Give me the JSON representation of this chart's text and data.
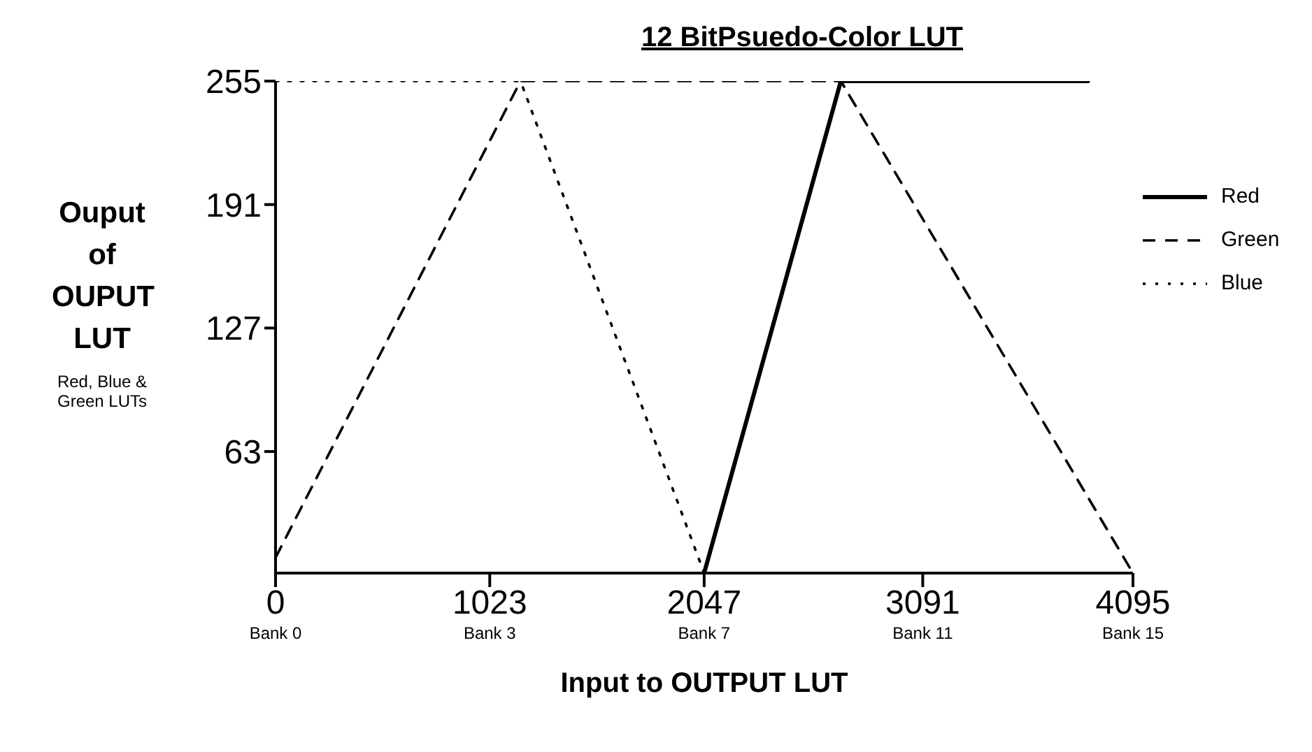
{
  "chart_data": {
    "type": "line",
    "title": "12 BitPsuedo-Color LUT",
    "xlabel": "Input to OUTPUT LUT",
    "ylabel": "Ouput of OUPUT LUT",
    "annotations": [
      "Red, Blue & Green LUTs",
      "Bank 0",
      "Bank 3",
      "Bank 7",
      "Bank 11",
      "Bank 15"
    ],
    "xlim": [
      0,
      4095
    ],
    "xticks": [
      0,
      1023,
      2047,
      3091,
      4095
    ],
    "ylim": [
      0,
      255
    ],
    "yticks": [
      63,
      127,
      191,
      255
    ],
    "grid": false,
    "legend": "right",
    "marker": "none",
    "series": [
      {
        "name": "Red",
        "color": "#000000",
        "line_style": "solid",
        "x": [
          2047,
          2700,
          3880
        ],
        "values": [
          0,
          255,
          255
        ]
      },
      {
        "name": "Green",
        "color": "#000000",
        "line_style": "dashed",
        "x": [
          0,
          1170,
          2700,
          4095
        ],
        "values": [
          8,
          255,
          255,
          0
        ]
      },
      {
        "name": "Blue",
        "color": "#000000",
        "line_style": "dotted",
        "x": [
          0,
          1170,
          2047
        ],
        "values": [
          255,
          255,
          0
        ]
      }
    ]
  }
}
